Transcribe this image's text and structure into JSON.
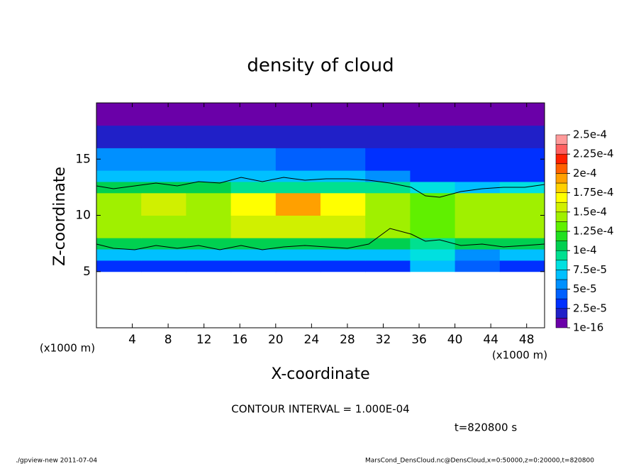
{
  "chart_data": {
    "type": "heatmap",
    "title": "density of cloud",
    "x_label": "X-coordinate",
    "y_label": "Z-coordinate",
    "x_unit": "(x1000 m)",
    "x_unit_right": "(x1000 m)",
    "xlim": [
      0,
      50
    ],
    "ylim": [
      0,
      20
    ],
    "xticks": [
      4,
      8,
      12,
      16,
      20,
      24,
      28,
      32,
      36,
      40,
      44,
      48
    ],
    "yticks": [
      5,
      10,
      15
    ],
    "x_edges": [
      0,
      5,
      10,
      15,
      20,
      25,
      30,
      35,
      40,
      45,
      50
    ],
    "z_edges": [
      5,
      6,
      7,
      8,
      10,
      12,
      13,
      14,
      16,
      18,
      20
    ],
    "values": [
      [
        3e-05,
        3e-05,
        3e-05,
        2.5e-05,
        3e-05,
        3e-05,
        3e-05,
        7e-05,
        4e-05,
        3e-05
      ],
      [
        7e-05,
        7e-05,
        7e-05,
        7e-05,
        7e-05,
        7e-05,
        7e-05,
        8e-05,
        6e-05,
        7e-05
      ],
      [
        0.00011,
        0.00011,
        0.00011,
        0.00011,
        0.00011,
        0.00011,
        0.0001,
        9e-05,
        0.00011,
        0.00011
      ],
      [
        0.00014,
        0.00014,
        0.00014,
        0.00015,
        0.00016,
        0.00015,
        0.00014,
        0.00013,
        0.00014,
        0.00014
      ],
      [
        0.000145,
        0.00015,
        0.00014,
        0.00017,
        0.00019,
        0.00017,
        0.00014,
        0.00013,
        0.00014,
        0.000145
      ],
      [
        0.0001,
        0.0001,
        0.0001,
        9e-05,
        9e-05,
        9e-05,
        9e-05,
        8e-05,
        7e-05,
        8e-05
      ],
      [
        7e-05,
        7e-05,
        7e-05,
        7e-05,
        7e-05,
        7e-05,
        6e-05,
        3e-05,
        3e-05,
        3e-05
      ],
      [
        5e-05,
        5e-05,
        5e-05,
        5e-05,
        4e-05,
        4e-05,
        3.5e-05,
        2.5e-05,
        2.5e-05,
        2.5e-05
      ],
      [
        1.5e-05,
        1.5e-05,
        1.5e-05,
        1.5e-05,
        1.5e-05,
        1.5e-05,
        1.5e-05,
        1.5e-05,
        1.5e-05,
        1.5e-05
      ],
      [
        5e-06,
        5e-06,
        5e-06,
        5e-06,
        5e-06,
        5e-06,
        5e-06,
        5e-06,
        5e-06,
        5e-06
      ]
    ],
    "colorbar": {
      "levels": [
        1e-16,
        1.25e-05,
        2.5e-05,
        3.75e-05,
        5e-05,
        6.25e-05,
        7.5e-05,
        8.75e-05,
        0.0001,
        0.0001125,
        0.000125,
        0.0001375,
        0.00015,
        0.0001625,
        0.000175,
        0.0001875,
        0.0002,
        0.0002125,
        0.000225,
        0.0002375,
        0.00025
      ],
      "colors": [
        "#6a00a8",
        "#2020c8",
        "#0030ff",
        "#0060ff",
        "#0090ff",
        "#00c0ff",
        "#00e0e0",
        "#00e090",
        "#00d050",
        "#20e020",
        "#60f000",
        "#a0f000",
        "#d0f000",
        "#ffff00",
        "#ffd000",
        "#ffa000",
        "#ff6000",
        "#ff2000",
        "#ff6060",
        "#ff9a9a"
      ],
      "ticks": [
        {
          "value": 1e-16,
          "label": "1e-16"
        },
        {
          "value": 2.5e-05,
          "label": "2.5e-5"
        },
        {
          "value": 5e-05,
          "label": "5e-5"
        },
        {
          "value": 7.5e-05,
          "label": "7.5e-5"
        },
        {
          "value": 0.0001,
          "label": "1e-4"
        },
        {
          "value": 0.000125,
          "label": "1.25e-4"
        },
        {
          "value": 0.00015,
          "label": "1.5e-4"
        },
        {
          "value": 0.000175,
          "label": "1.75e-4"
        },
        {
          "value": 0.0002,
          "label": "2e-4"
        },
        {
          "value": 0.000225,
          "label": "2.25e-4"
        },
        {
          "value": 0.00025,
          "label": "2.5e-4"
        }
      ]
    },
    "contour_interval": "CONTOUR INTERVAL = 1.000E-04",
    "time_label": "t=820800 s",
    "footer_left": "./gpview-new  2011-07-04",
    "footer_right": "MarsCond_DensCloud.nc@DensCloud,x=0:50000,z=0:20000,t=820800"
  }
}
